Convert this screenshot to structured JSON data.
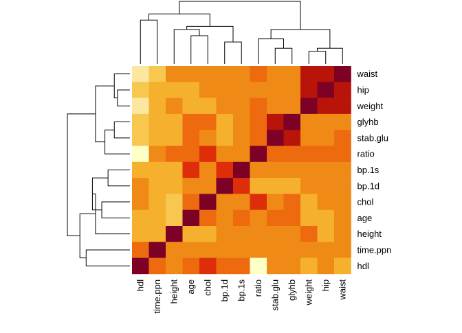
{
  "chart_data": {
    "type": "heatmap",
    "title": "",
    "xlabel": "",
    "ylabel": "",
    "columns": [
      "hdl",
      "time.ppn",
      "height",
      "age",
      "chol",
      "bp.1d",
      "bp.1s",
      "ratio",
      "stab.glu",
      "glyhb",
      "weight",
      "hip",
      "waist"
    ],
    "rows": [
      "waist",
      "hip",
      "weight",
      "glyhb",
      "stab.glu",
      "ratio",
      "bp.1s",
      "bp.1d",
      "chol",
      "age",
      "height",
      "time.ppn",
      "hdl"
    ],
    "values": [
      [
        -0.3,
        -0.1,
        0.15,
        0.2,
        0.2,
        0.2,
        0.2,
        0.4,
        0.2,
        0.2,
        0.8,
        0.8,
        1.0
      ],
      [
        -0.2,
        0.05,
        0.05,
        0.05,
        0.2,
        0.2,
        0.2,
        0.2,
        0.2,
        0.2,
        0.8,
        1.0,
        0.8
      ],
      [
        -0.3,
        0.1,
        0.25,
        0.05,
        0.05,
        0.2,
        0.2,
        0.4,
        0.2,
        0.2,
        1.0,
        0.8,
        0.8
      ],
      [
        -0.2,
        0.05,
        0.05,
        0.35,
        0.35,
        0.0,
        0.2,
        0.35,
        0.75,
        1.0,
        0.2,
        0.2,
        0.2
      ],
      [
        -0.2,
        0.05,
        0.05,
        0.3,
        0.2,
        0.0,
        0.2,
        0.3,
        1.0,
        0.75,
        0.2,
        0.2,
        0.3
      ],
      [
        -0.6,
        0.2,
        0.3,
        0.3,
        0.5,
        0.2,
        0.2,
        1.0,
        0.3,
        0.35,
        0.35,
        0.35,
        0.35
      ],
      [
        -0.05,
        -0.05,
        0.05,
        0.5,
        0.2,
        0.6,
        1.0,
        0.2,
        0.2,
        0.2,
        0.2,
        0.2,
        0.2
      ],
      [
        0.25,
        0.05,
        0.05,
        0.2,
        0.2,
        1.0,
        0.6,
        0.05,
        0.05,
        0.05,
        0.2,
        0.2,
        0.2
      ],
      [
        0.25,
        0.05,
        -0.1,
        0.35,
        1.0,
        0.2,
        0.2,
        0.5,
        0.25,
        0.35,
        0.05,
        0.2,
        0.2
      ],
      [
        0.05,
        0.05,
        -0.1,
        0.9,
        0.35,
        0.2,
        0.45,
        0.2,
        0.3,
        0.45,
        0.05,
        0.05,
        0.2
      ],
      [
        0.05,
        0.1,
        1.0,
        0.05,
        0.05,
        0.2,
        0.2,
        0.2,
        0.2,
        0.2,
        0.45,
        0.05,
        0.2
      ],
      [
        0.35,
        1.0,
        0.2,
        0.2,
        0.2,
        0.2,
        0.2,
        0.2,
        0.2,
        0.2,
        0.2,
        0.2,
        0.2
      ],
      [
        1.0,
        0.35,
        0.2,
        0.3,
        0.5,
        0.3,
        0.3,
        -0.6,
        0.2,
        0.2,
        0.05,
        0.2,
        0.05
      ]
    ],
    "col_dendrogram": {
      "leaves": [
        "hdl",
        "time.ppn",
        "height",
        "age",
        "chol",
        "bp.1d",
        "bp.1s",
        "ratio",
        "stab.glu",
        "glyhb",
        "weight",
        "hip",
        "waist"
      ],
      "merges": [
        [
          -1,
          -2,
          0.7
        ],
        [
          -4,
          -5,
          0.45
        ],
        [
          -6,
          -7,
          0.35
        ],
        [
          -9,
          -10,
          0.25
        ],
        [
          -11,
          -12,
          0.2
        ],
        [
          -13,
          5,
          0.25
        ],
        [
          -3,
          2,
          0.55
        ],
        [
          3,
          7,
          0.6
        ],
        [
          -8,
          4,
          0.4
        ],
        [
          9,
          6,
          0.55
        ],
        [
          1,
          8,
          0.8
        ],
        [
          11,
          10,
          1.0
        ]
      ]
    },
    "row_dendrogram": {
      "leaves": [
        "waist",
        "hip",
        "weight",
        "glyhb",
        "stab.glu",
        "ratio",
        "bp.1s",
        "bp.1d",
        "chol",
        "age",
        "height",
        "time.ppn",
        "hdl"
      ],
      "merges": [
        [
          -2,
          -3,
          0.2
        ],
        [
          -1,
          1,
          0.25
        ],
        [
          -4,
          -5,
          0.25
        ],
        [
          -6,
          3,
          0.4
        ],
        [
          2,
          4,
          0.55
        ],
        [
          -7,
          -8,
          0.35
        ],
        [
          -9,
          -10,
          0.45
        ],
        [
          6,
          7,
          0.6
        ],
        [
          -11,
          8,
          0.55
        ],
        [
          -12,
          -13,
          0.7
        ],
        [
          9,
          10,
          0.8
        ],
        [
          5,
          11,
          1.0
        ]
      ]
    },
    "colors": [
      "#FFFFC8",
      "#FDE7A0",
      "#F8C750",
      "#F5B02E",
      "#F08A17",
      "#EE6A0E",
      "#DE2D09",
      "#B81409",
      "#7D0025"
    ]
  }
}
